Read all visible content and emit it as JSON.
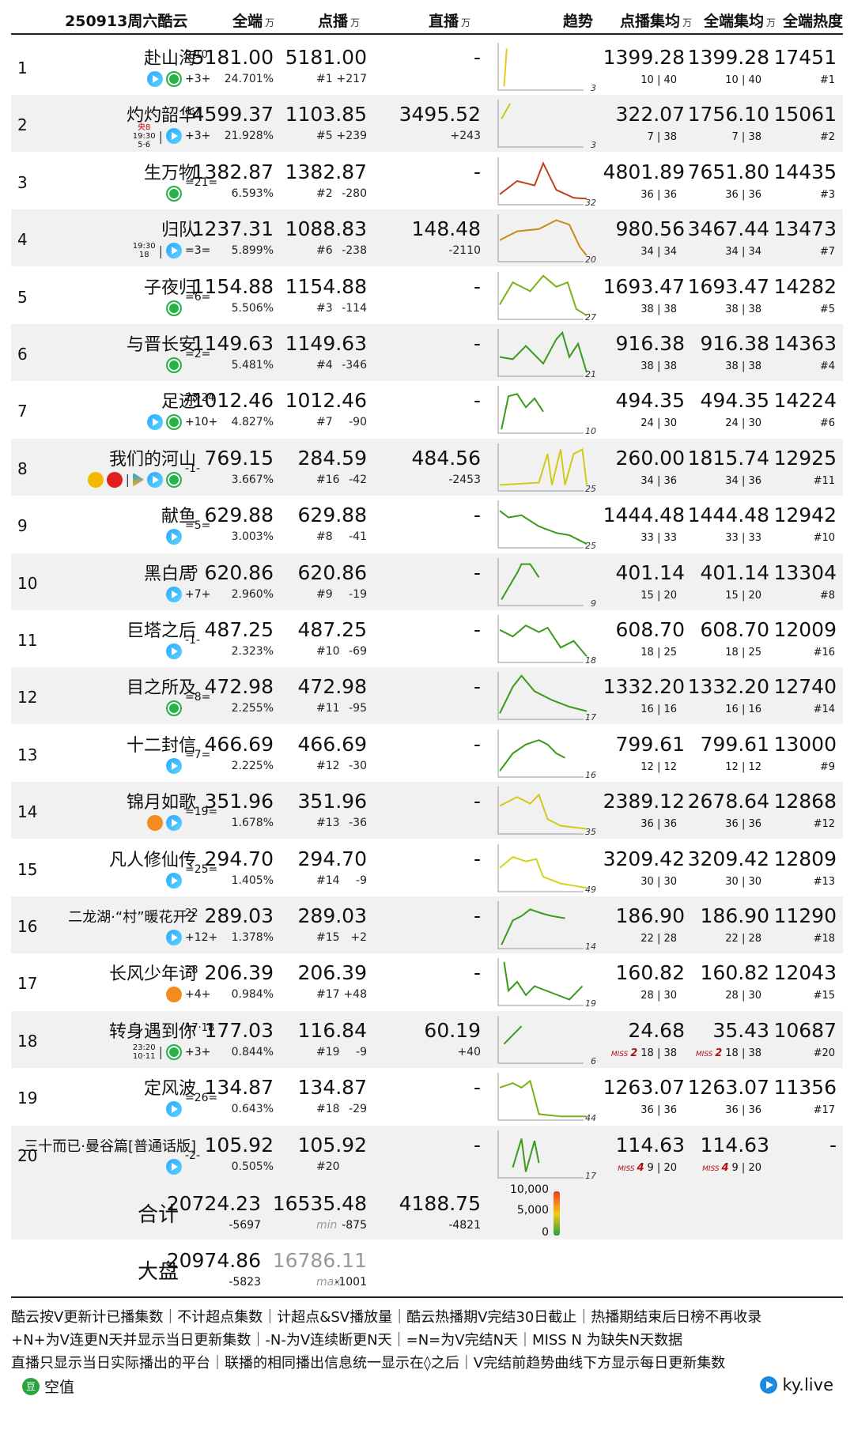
{
  "header": {
    "title": "250913周六酷云",
    "cols": [
      "全端",
      "点播",
      "直播",
      "趋势",
      "点播集均",
      "全端集均",
      "全端热度"
    ],
    "unit": "万"
  },
  "rows": [
    {
      "rank": "1",
      "title": "赴山海",
      "sup": "9·10",
      "streak": "+3+",
      "full": "5181.00",
      "pct": "24.701%",
      "vod": "5181.00",
      "vrank": "#1",
      "vdelta": "+217",
      "live": "-",
      "ldelta": "",
      "trend": "3",
      "avg1": "1399.28",
      "r1": "10 | 40",
      "avg2": "1399.28",
      "r2": "10 | 40",
      "heat": "17451",
      "hrank": "#1"
    },
    {
      "rank": "2",
      "title": "灼灼韶华",
      "sup": "6·7",
      "streak": "+3+",
      "tvch": "央8",
      "tvtime": "19:30",
      "tvdate": "5·6",
      "full": "4599.37",
      "pct": "21.928%",
      "vod": "1103.85",
      "vrank": "#5",
      "vdelta": "+239",
      "live": "3495.52",
      "ldelta": "+243",
      "trend": "3",
      "avg1": "322.07",
      "r1": "7 | 38",
      "avg2": "1756.10",
      "r2": "7 | 38",
      "heat": "15061",
      "hrank": "#2"
    },
    {
      "rank": "3",
      "title": "生万物",
      "sup": "",
      "streak": "=21=",
      "full": "1382.87",
      "pct": "6.593%",
      "vod": "1382.87",
      "vrank": "#2",
      "vdelta": "-280",
      "live": "-",
      "ldelta": "",
      "trend": "32",
      "avg1": "4801.89",
      "r1": "36 | 36",
      "avg2": "7651.80",
      "r2": "36 | 36",
      "heat": "14435",
      "hrank": "#3"
    },
    {
      "rank": "4",
      "title": "归队",
      "sup": "",
      "streak": "=3=",
      "tvch": "",
      "tvtime": "19:30",
      "tvdate": "18",
      "full": "1237.31",
      "pct": "5.899%",
      "vod": "1088.83",
      "vrank": "#6",
      "vdelta": "-238",
      "live": "148.48",
      "ldelta": "-2110",
      "trend": "20",
      "avg1": "980.56",
      "r1": "34 | 34",
      "avg2": "3467.44",
      "r2": "34 | 34",
      "heat": "13473",
      "hrank": "#7"
    },
    {
      "rank": "5",
      "title": "子夜归",
      "sup": "",
      "streak": "=6=",
      "full": "1154.88",
      "pct": "5.506%",
      "vod": "1154.88",
      "vrank": "#3",
      "vdelta": "-114",
      "live": "-",
      "ldelta": "",
      "trend": "27",
      "avg1": "1693.47",
      "r1": "38 | 38",
      "avg2": "1693.47",
      "r2": "38 | 38",
      "heat": "14282",
      "hrank": "#5"
    },
    {
      "rank": "6",
      "title": "与晋长安",
      "sup": "",
      "streak": "=2=",
      "full": "1149.63",
      "pct": "5.481%",
      "vod": "1149.63",
      "vrank": "#4",
      "vdelta": "-346",
      "live": "-",
      "ldelta": "",
      "trend": "21",
      "avg1": "916.38",
      "r1": "38 | 38",
      "avg2": "916.38",
      "r2": "38 | 38",
      "heat": "14363",
      "hrank": "#4"
    },
    {
      "rank": "7",
      "title": "足迹",
      "sup": "23·24",
      "streak": "+10+",
      "full": "1012.46",
      "pct": "4.827%",
      "vod": "1012.46",
      "vrank": "#7",
      "vdelta": "-90",
      "live": "-",
      "ldelta": "",
      "trend": "10",
      "avg1": "494.35",
      "r1": "24 | 30",
      "avg2": "494.35",
      "r2": "24 | 30",
      "heat": "14224",
      "hrank": "#6"
    },
    {
      "rank": "8",
      "title": "我们的河山",
      "sup": "",
      "streak": "-1-",
      "full": "769.15",
      "pct": "3.667%",
      "vod": "284.59",
      "vrank": "#16",
      "vdelta": "-42",
      "live": "484.56",
      "ldelta": "-2453",
      "trend": "25",
      "avg1": "260.00",
      "r1": "34 | 36",
      "avg2": "1815.74",
      "r2": "34 | 36",
      "heat": "12925",
      "hrank": "#11"
    },
    {
      "rank": "9",
      "title": "献鱼",
      "sup": "",
      "streak": "=5=",
      "full": "629.88",
      "pct": "3.003%",
      "vod": "629.88",
      "vrank": "#8",
      "vdelta": "-41",
      "live": "-",
      "ldelta": "",
      "trend": "25",
      "avg1": "1444.48",
      "r1": "33 | 33",
      "avg2": "1444.48",
      "r2": "33 | 33",
      "heat": "12942",
      "hrank": "#10"
    },
    {
      "rank": "10",
      "title": "黑白局",
      "sup": "15",
      "streak": "+7+",
      "full": "620.86",
      "pct": "2.960%",
      "vod": "620.86",
      "vrank": "#9",
      "vdelta": "-19",
      "live": "-",
      "ldelta": "",
      "trend": "9",
      "avg1": "401.14",
      "r1": "15 | 20",
      "avg2": "401.14",
      "r2": "15 | 20",
      "heat": "13304",
      "hrank": "#8"
    },
    {
      "rank": "11",
      "title": "巨塔之后",
      "sup": "",
      "streak": "-1-",
      "full": "487.25",
      "pct": "2.323%",
      "vod": "487.25",
      "vrank": "#10",
      "vdelta": "-69",
      "live": "-",
      "ldelta": "",
      "trend": "18",
      "avg1": "608.70",
      "r1": "18 | 25",
      "avg2": "608.70",
      "r2": "18 | 25",
      "heat": "12009",
      "hrank": "#16"
    },
    {
      "rank": "12",
      "title": "目之所及",
      "sup": "",
      "streak": "=8=",
      "full": "472.98",
      "pct": "2.255%",
      "vod": "472.98",
      "vrank": "#11",
      "vdelta": "-95",
      "live": "-",
      "ldelta": "",
      "trend": "17",
      "avg1": "1332.20",
      "r1": "16 | 16",
      "avg2": "1332.20",
      "r2": "16 | 16",
      "heat": "12740",
      "hrank": "#14"
    },
    {
      "rank": "13",
      "title": "十二封信",
      "sup": "",
      "streak": "=7=",
      "full": "466.69",
      "pct": "2.225%",
      "vod": "466.69",
      "vrank": "#12",
      "vdelta": "-30",
      "live": "-",
      "ldelta": "",
      "trend": "16",
      "avg1": "799.61",
      "r1": "12 | 12",
      "avg2": "799.61",
      "r2": "12 | 12",
      "heat": "13000",
      "hrank": "#9"
    },
    {
      "rank": "14",
      "title": "锦月如歌",
      "sup": "",
      "streak": "=19=",
      "full": "351.96",
      "pct": "1.678%",
      "vod": "351.96",
      "vrank": "#13",
      "vdelta": "-36",
      "live": "-",
      "ldelta": "",
      "trend": "35",
      "avg1": "2389.12",
      "r1": "36 | 36",
      "avg2": "2678.64",
      "r2": "36 | 36",
      "heat": "12868",
      "hrank": "#12"
    },
    {
      "rank": "15",
      "title": "凡人修仙传",
      "sup": "",
      "streak": "=25=",
      "full": "294.70",
      "pct": "1.405%",
      "vod": "294.70",
      "vrank": "#14",
      "vdelta": "-9",
      "live": "-",
      "ldelta": "",
      "trend": "49",
      "avg1": "3209.42",
      "r1": "30 | 30",
      "avg2": "3209.42",
      "r2": "30 | 30",
      "heat": "12809",
      "hrank": "#13"
    },
    {
      "rank": "16",
      "title": "二龙湖·“村”暖花开2",
      "sup": "22",
      "streak": "+12+",
      "full": "289.03",
      "pct": "1.378%",
      "vod": "289.03",
      "vrank": "#15",
      "vdelta": "+2",
      "live": "-",
      "ldelta": "",
      "trend": "14",
      "avg1": "186.90",
      "r1": "22 | 28",
      "avg2": "186.90",
      "r2": "22 | 28",
      "heat": "11290",
      "hrank": "#18"
    },
    {
      "rank": "17",
      "title": "长风少年词",
      "sup": "28",
      "streak": "+4+",
      "full": "206.39",
      "pct": "0.984%",
      "vod": "206.39",
      "vrank": "#17",
      "vdelta": "+48",
      "live": "-",
      "ldelta": "",
      "trend": "19",
      "avg1": "160.82",
      "r1": "28 | 30",
      "avg2": "160.82",
      "r2": "28 | 30",
      "heat": "12043",
      "hrank": "#15"
    },
    {
      "rank": "18",
      "title": "转身遇到你",
      "sup": "17·18",
      "streak": "+3+",
      "tvch": "",
      "tvtime": "23:20",
      "tvdate": "10·11",
      "full": "177.03",
      "pct": "0.844%",
      "vod": "116.84",
      "vrank": "#19",
      "vdelta": "-9",
      "live": "60.19",
      "ldelta": "+40",
      "trend": "6",
      "avg1": "24.68",
      "miss1": "2",
      "r1": "18 | 38",
      "avg2": "35.43",
      "miss2": "2",
      "r2": "18 | 38",
      "heat": "10687",
      "hrank": "#20"
    },
    {
      "rank": "19",
      "title": "定风波",
      "sup": "",
      "streak": "=26=",
      "full": "134.87",
      "pct": "0.643%",
      "vod": "134.87",
      "vrank": "#18",
      "vdelta": "-29",
      "live": "-",
      "ldelta": "",
      "trend": "44",
      "avg1": "1263.07",
      "r1": "36 | 36",
      "avg2": "1263.07",
      "r2": "36 | 36",
      "heat": "11356",
      "hrank": "#17"
    },
    {
      "rank": "20",
      "title": "三十而已·曼谷篇[普通话版]",
      "sup": "",
      "streak": "-2-",
      "full": "105.92",
      "pct": "0.505%",
      "vod": "105.92",
      "vrank": "#20",
      "vdelta": "",
      "live": "-",
      "ldelta": "",
      "trend": "17",
      "avg1": "114.63",
      "miss1": "4",
      "r1": "9 | 20",
      "avg2": "114.63",
      "miss2": "4",
      "r2": "9 | 20",
      "heat": "-",
      "hrank": ""
    }
  ],
  "total": {
    "label": "合计",
    "full": "20724.23",
    "fd": "-5697",
    "vod": "16535.48",
    "vtag": "min",
    "vd": "-875",
    "live": "4188.75",
    "ld": "-4821"
  },
  "market": {
    "label": "大盘",
    "full": "20974.86",
    "fd": "-5823",
    "vod": "16786.11",
    "vtag": "max",
    "vd": "-1001"
  },
  "legend": [
    "10,000",
    "5,000",
    "0"
  ],
  "miss_label": "MISS",
  "notes": [
    "酷云按V更新计已播集数｜不计超点集数｜计超点&SV播放量｜酷云热播期V完结30日截止｜热播期结束后日榜不再收录",
    "+N+为V连更N天并显示当日更新集数｜-N-为V连续断更N天｜=N=为V完结N天｜MISS N 为缺失N天数据",
    "直播只显示当日实际播出的平台｜联播的相同播出信息统一显示在◊之后｜V完结前趋势曲线下方显示每日更新集数"
  ],
  "brand": {
    "left": "空值",
    "right": "ky.live"
  }
}
